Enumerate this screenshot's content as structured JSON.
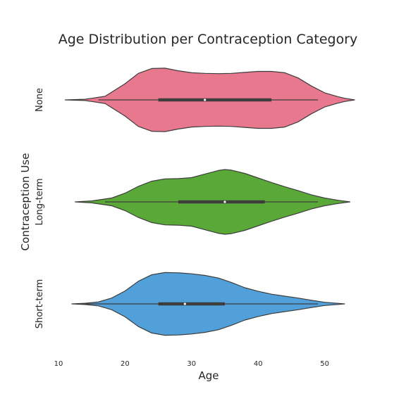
{
  "chart_data": {
    "type": "violin",
    "title": "Age Distribution per Contraception Category",
    "xlabel": "Age",
    "ylabel": "Contraception Use",
    "xlim": [
      10,
      54.8
    ],
    "xticks": [
      10,
      20,
      30,
      40,
      50
    ],
    "grid": false,
    "legend": "none",
    "categories": [
      "None",
      "Long-term",
      "Short-term"
    ],
    "series": [
      {
        "category": "None",
        "color": "#e8788e",
        "stats": {
          "whisker_low": 16,
          "q1": 25,
          "median": 32,
          "q3": 42,
          "whisker_high": 49,
          "min_extent": 11,
          "max_extent": 54.5
        },
        "density": [
          [
            11,
            0.0
          ],
          [
            14,
            0.02
          ],
          [
            17,
            0.11
          ],
          [
            20,
            0.5
          ],
          [
            22,
            0.82
          ],
          [
            24,
            0.97
          ],
          [
            26,
            0.98
          ],
          [
            28,
            0.9
          ],
          [
            30,
            0.84
          ],
          [
            32,
            0.82
          ],
          [
            34,
            0.81
          ],
          [
            36,
            0.82
          ],
          [
            38,
            0.85
          ],
          [
            40,
            0.88
          ],
          [
            42,
            0.88
          ],
          [
            44,
            0.84
          ],
          [
            46,
            0.68
          ],
          [
            48,
            0.43
          ],
          [
            50,
            0.22
          ],
          [
            52,
            0.1
          ],
          [
            53,
            0.05
          ],
          [
            54.5,
            0.0
          ]
        ]
      },
      {
        "category": "Long-term",
        "color": "#5aa838",
        "stats": {
          "whisker_low": 17,
          "q1": 28,
          "median": 35,
          "q3": 41,
          "whisker_high": 49,
          "min_extent": 12.5,
          "max_extent": 53.8
        },
        "density": [
          [
            12.5,
            0.0
          ],
          [
            15,
            0.03
          ],
          [
            18,
            0.12
          ],
          [
            20,
            0.27
          ],
          [
            22,
            0.48
          ],
          [
            24,
            0.64
          ],
          [
            26,
            0.71
          ],
          [
            28,
            0.72
          ],
          [
            30,
            0.75
          ],
          [
            32,
            0.86
          ],
          [
            34,
            0.97
          ],
          [
            35,
            1.0
          ],
          [
            36,
            0.98
          ],
          [
            38,
            0.88
          ],
          [
            40,
            0.74
          ],
          [
            42,
            0.6
          ],
          [
            44,
            0.47
          ],
          [
            46,
            0.35
          ],
          [
            48,
            0.22
          ],
          [
            50,
            0.12
          ],
          [
            52,
            0.05
          ],
          [
            53.8,
            0.0
          ]
        ]
      },
      {
        "category": "Short-term",
        "color": "#52a0da",
        "stats": {
          "whisker_low": 13,
          "q1": 25,
          "median": 29,
          "q3": 35,
          "whisker_high": 49,
          "min_extent": 12,
          "max_extent": 53
        },
        "density": [
          [
            12,
            0.0
          ],
          [
            14,
            0.02
          ],
          [
            16,
            0.06
          ],
          [
            18,
            0.18
          ],
          [
            20,
            0.4
          ],
          [
            22,
            0.7
          ],
          [
            24,
            0.9
          ],
          [
            26,
            0.97
          ],
          [
            28,
            0.96
          ],
          [
            30,
            0.93
          ],
          [
            32,
            0.88
          ],
          [
            34,
            0.8
          ],
          [
            36,
            0.66
          ],
          [
            38,
            0.5
          ],
          [
            40,
            0.39
          ],
          [
            42,
            0.3
          ],
          [
            44,
            0.24
          ],
          [
            46,
            0.18
          ],
          [
            48,
            0.11
          ],
          [
            50,
            0.05
          ],
          [
            53,
            0.0
          ]
        ]
      }
    ]
  }
}
